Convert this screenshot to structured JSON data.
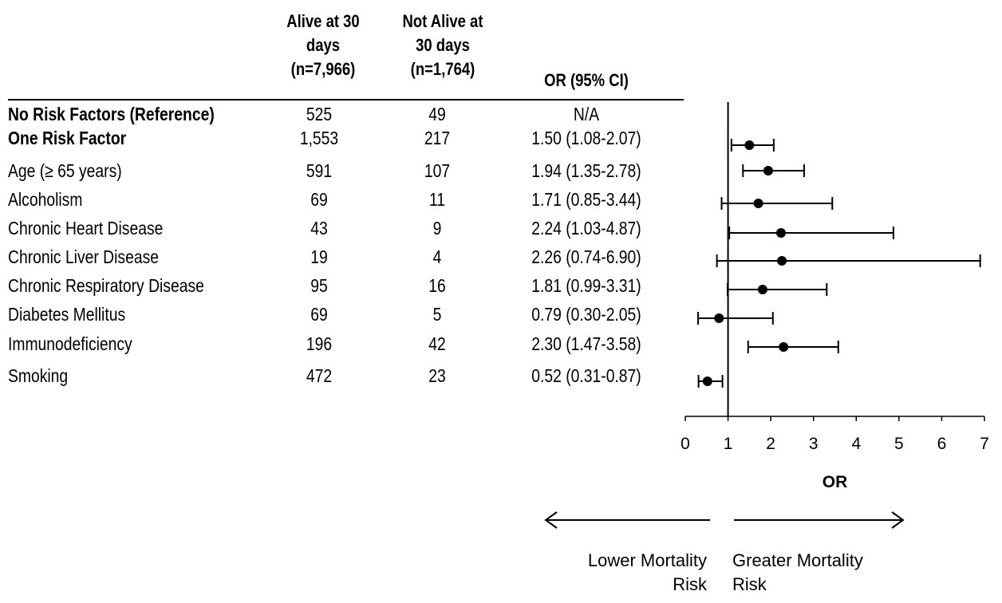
{
  "table": {
    "headers": {
      "alive": [
        "Alive at 30",
        "days",
        "(n=7,966)"
      ],
      "not_alive": [
        "Not Alive at",
        "30 days",
        "(n=1,764)"
      ],
      "or": [
        "OR (95% CI)"
      ]
    },
    "rows": [
      {
        "label": "No Risk Factors (Reference)",
        "bold": true,
        "alive": "525",
        "not_alive": "49",
        "or_text": "N/A"
      },
      {
        "label": "One Risk Factor",
        "bold": true,
        "alive": "1,553",
        "not_alive": "217",
        "or_text": "1.50 (1.08-2.07)"
      },
      {
        "label": "Age (≥ 65 years)",
        "bold": false,
        "alive": "591",
        "not_alive": "107",
        "or_text": "1.94 (1.35-2.78)"
      },
      {
        "label": "Alcoholism",
        "bold": false,
        "alive": "69",
        "not_alive": "11",
        "or_text": "1.71 (0.85-3.44)"
      },
      {
        "label": "Chronic Heart Disease",
        "bold": false,
        "alive": "43",
        "not_alive": "9",
        "or_text": "2.24 (1.03-4.87)"
      },
      {
        "label": "Chronic Liver Disease",
        "bold": false,
        "alive": "19",
        "not_alive": "4",
        "or_text": "2.26 (0.74-6.90)"
      },
      {
        "label": "Chronic Respiratory Disease",
        "bold": false,
        "alive": "95",
        "not_alive": "16",
        "or_text": "1.81 (0.99-3.31)"
      },
      {
        "label": "Diabetes Mellitus",
        "bold": false,
        "alive": "69",
        "not_alive": "5",
        "or_text": "0.79 (0.30-2.05)"
      },
      {
        "label": "Immunodeficiency",
        "bold": false,
        "alive": "196",
        "not_alive": "42",
        "or_text": "2.30 (1.47-3.58)"
      },
      {
        "label": "Smoking",
        "bold": false,
        "alive": "472",
        "not_alive": "23",
        "or_text": "0.52 (0.31-0.87)"
      }
    ]
  },
  "chart_data": {
    "type": "scatter",
    "subtype": "forest-plot",
    "xlabel": "OR",
    "xlim": [
      0,
      7
    ],
    "xticks": [
      0,
      1,
      2,
      3,
      4,
      5,
      6,
      7
    ],
    "reference_line": 1,
    "points": [
      {
        "row": "One Risk Factor",
        "or": 1.5,
        "lo": 1.08,
        "hi": 2.07
      },
      {
        "row": "Age (≥ 65 years)",
        "or": 1.94,
        "lo": 1.35,
        "hi": 2.78
      },
      {
        "row": "Alcoholism",
        "or": 1.71,
        "lo": 0.85,
        "hi": 3.44
      },
      {
        "row": "Chronic Heart Disease",
        "or": 2.24,
        "lo": 1.03,
        "hi": 4.87
      },
      {
        "row": "Chronic Liver Disease",
        "or": 2.26,
        "lo": 0.74,
        "hi": 6.9
      },
      {
        "row": "Chronic Respiratory Disease",
        "or": 1.81,
        "lo": 0.99,
        "hi": 3.31
      },
      {
        "row": "Diabetes Mellitus",
        "or": 0.79,
        "lo": 0.3,
        "hi": 2.05
      },
      {
        "row": "Immunodeficiency",
        "or": 2.3,
        "lo": 1.47,
        "hi": 3.58
      },
      {
        "row": "Smoking",
        "or": 0.52,
        "lo": 0.31,
        "hi": 0.87
      }
    ],
    "arrow_labels": {
      "left": [
        "Lower Mortality",
        "Risk"
      ],
      "right": [
        "Greater Mortality",
        "Risk"
      ]
    }
  }
}
